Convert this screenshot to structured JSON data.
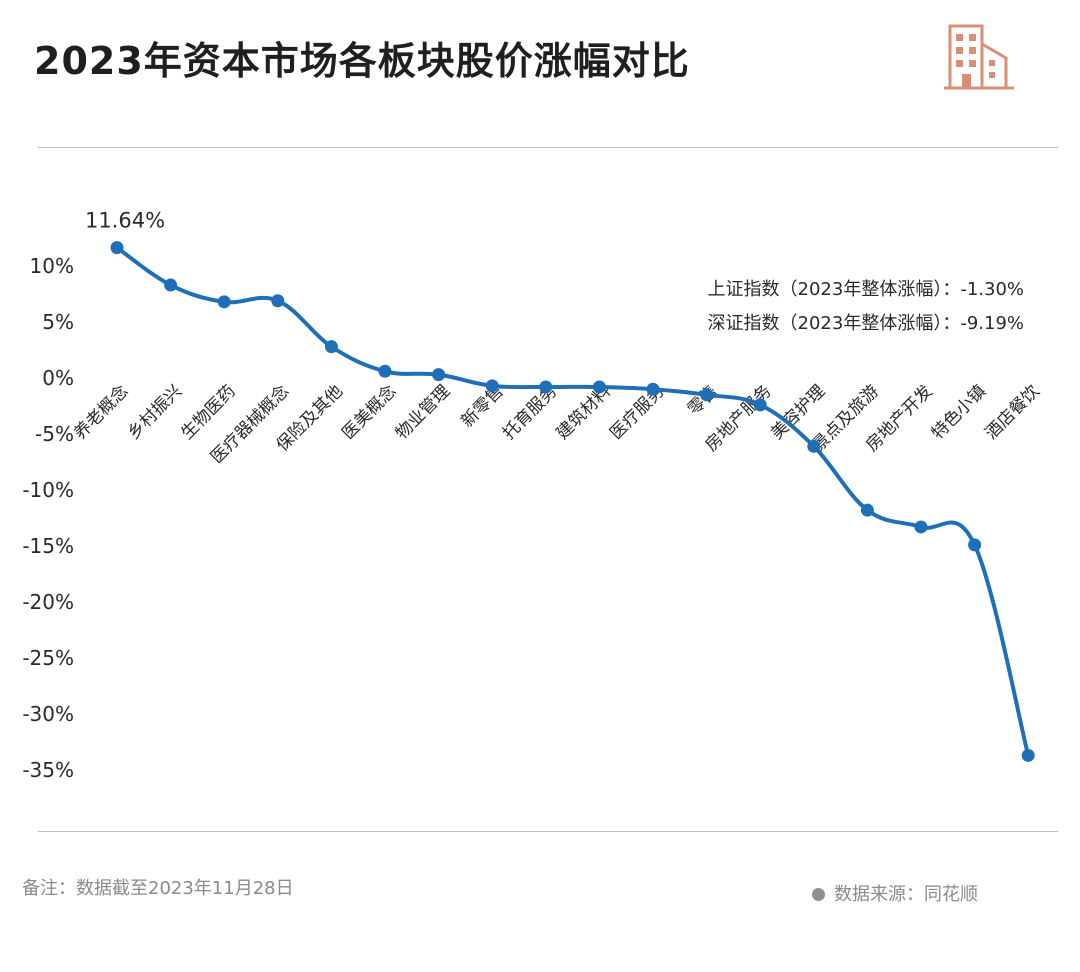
{
  "header": {
    "title": "2023年资本市场各板块股价涨幅对比",
    "icon": "building-icon",
    "icon_color": "#d98f76"
  },
  "chart_data": {
    "type": "line",
    "title": "2023年资本市场各板块股价涨幅对比",
    "xlabel": "",
    "ylabel": "",
    "ylim": [
      -35,
      10
    ],
    "yticks": [
      10,
      5,
      0,
      -5,
      -10,
      -15,
      -20,
      -25,
      -30,
      -35
    ],
    "ytick_labels": [
      "10%",
      "5%",
      "0%",
      "-5%",
      "-10%",
      "-15%",
      "-20%",
      "-25%",
      "-30%",
      "-35%"
    ],
    "grid": false,
    "line_color": "#1f6fb8",
    "categories": [
      "养老概念",
      "乡村振兴",
      "生物医药",
      "医疗器械概念",
      "保险及其他",
      "医美概念",
      "物业管理",
      "新零售",
      "托育服务",
      "建筑材料",
      "医疗服务",
      "零售",
      "房地产服务",
      "美容护理",
      "景点及旅游",
      "房地产开发",
      "特色小镇",
      "酒店餐饮"
    ],
    "series": [
      {
        "values": [
          11.64,
          8.3,
          6.8,
          6.9,
          2.8,
          0.6,
          0.3,
          -0.7,
          -0.8,
          -0.8,
          -1.0,
          -1.5,
          -2.4,
          -6.1,
          -11.8,
          -13.3,
          -14.9,
          -33.7
        ]
      }
    ],
    "data_labels": [
      {
        "index": 0,
        "text": "11.64%"
      }
    ],
    "annotations": [
      "上证指数（2023年整体涨幅）：-1.30%",
      "深证指数（2023年整体涨幅）：-9.19%"
    ]
  },
  "footer": {
    "note": "备注：数据截至2023年11月28日",
    "source": "数据来源：同花顺"
  }
}
